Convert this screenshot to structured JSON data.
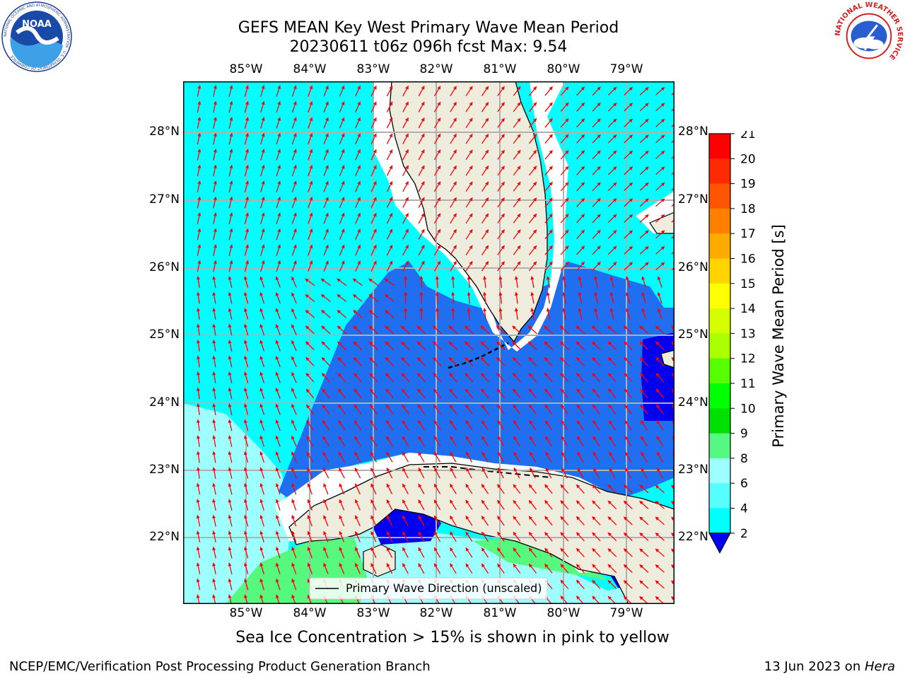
{
  "title": {
    "line1": "GEFS MEAN Key West Primary Wave Mean Period",
    "line2": "20230611 t06z 096h fcst   Max: 9.54"
  },
  "note": "Sea Ice Concentration > 15% is shown in pink to yellow",
  "footer": {
    "left": "NCEP/EMC/Verification Post Processing Product Generation Branch",
    "right_date": "13 Jun 2023 on ",
    "right_host": "Hera"
  },
  "logos": {
    "noaa_text": "NOAA",
    "noaa_ring_text": "NATIONAL OCEANIC AND ATMOSPHERIC ADMINISTRATION · U.S. DEPARTMENT OF COMMERCE",
    "nws_ring_text": "NATIONAL WEATHER SERVICE"
  },
  "map": {
    "lon_labels": [
      "85°W",
      "84°W",
      "83°W",
      "82°W",
      "81°W",
      "80°W",
      "79°W"
    ],
    "lat_labels": [
      "28°N",
      "27°N",
      "26°N",
      "25°N",
      "24°N",
      "23°N",
      "22°N"
    ],
    "legend_label": "Primary Wave Direction (unscaled)",
    "colors": {
      "land": "#eeecdc",
      "cyan": "#00ffff",
      "light_cyan": "#9effff",
      "mid_blue": "#1f6ff0",
      "deep_blue": "#0000f0",
      "green": "#56f87d",
      "arrow": "#ff0000",
      "grid": "#b0b0b0"
    }
  },
  "colorbar": {
    "label": "Primary Wave Mean Period [s]",
    "ticks": [
      "21",
      "20",
      "19",
      "18",
      "17",
      "16",
      "15",
      "14",
      "13",
      "12",
      "11",
      "10",
      "9",
      "8",
      "6",
      "4",
      "2"
    ],
    "colors": [
      "#ff0000",
      "#ff2a00",
      "#ff5500",
      "#ff7f00",
      "#ffaa00",
      "#ffd400",
      "#ffff00",
      "#d4ff00",
      "#aaff00",
      "#55ff00",
      "#00ff00",
      "#00e000",
      "#55f880",
      "#9effff",
      "#55ffff",
      "#00ffff",
      "#1f6ff0"
    ],
    "extend_color": "#0000f0"
  }
}
